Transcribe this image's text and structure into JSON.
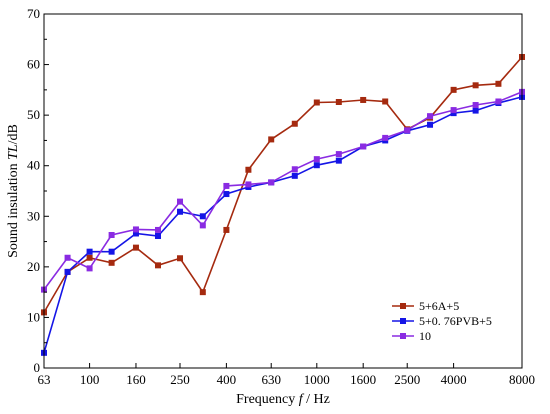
{
  "chart_data": {
    "type": "line",
    "xlabel": "Frequency f / Hz",
    "ylabel": "Sound insulation TL/dB",
    "x_scale": "log",
    "xlim": [
      63,
      8000
    ],
    "ylim": [
      0,
      70
    ],
    "x_ticks": [
      63,
      100,
      160,
      250,
      400,
      630,
      1000,
      1600,
      2500,
      4000,
      8000
    ],
    "y_ticks": [
      0,
      10,
      20,
      30,
      40,
      50,
      60,
      70
    ],
    "grid": false,
    "legend_position": "bottom-right",
    "x": [
      63,
      80,
      100,
      125,
      160,
      200,
      250,
      315,
      400,
      500,
      630,
      800,
      1000,
      1250,
      1600,
      2000,
      2500,
      3150,
      4000,
      5000,
      6300,
      8000
    ],
    "series": [
      {
        "name": "5+6A+5",
        "color": "#a52a0f",
        "values": [
          11.0,
          19.0,
          21.8,
          20.8,
          23.8,
          20.3,
          21.7,
          15.0,
          27.3,
          39.2,
          45.2,
          48.3,
          52.5,
          52.6,
          53.0,
          52.7,
          47.2,
          49.5,
          55.0,
          55.9,
          56.2,
          61.5
        ]
      },
      {
        "name": "5+0. 76PVB+5",
        "color": "#1515e6",
        "values": [
          3.0,
          19.0,
          23.0,
          23.0,
          26.6,
          26.1,
          30.9,
          30.0,
          34.4,
          35.8,
          36.7,
          38.0,
          40.1,
          41.0,
          43.8,
          45.0,
          46.9,
          48.1,
          50.4,
          50.9,
          52.4,
          53.6
        ]
      },
      {
        "name": "10",
        "color": "#8a2be2",
        "values": [
          15.5,
          21.8,
          19.7,
          26.3,
          27.4,
          27.3,
          32.9,
          28.2,
          36.0,
          36.3,
          36.7,
          39.3,
          41.3,
          42.3,
          43.8,
          45.5,
          47.0,
          49.8,
          51.0,
          52.0,
          52.7,
          54.6
        ]
      }
    ]
  }
}
